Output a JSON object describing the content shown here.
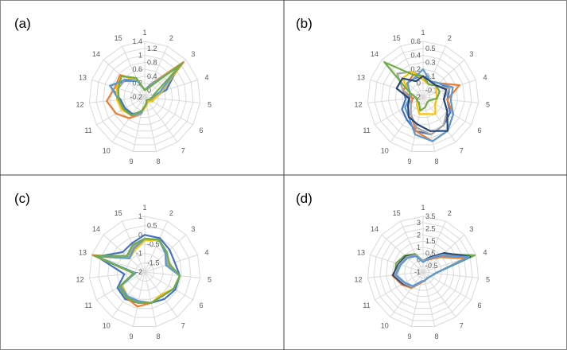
{
  "colors": {
    "blue": "#4472C4",
    "orange": "#ED7D31",
    "gray": "#A5A5A5",
    "yellow": "#FFC000",
    "lightblue": "#5B9BD5",
    "green": "#70AD47",
    "navy": "#264478"
  },
  "chart_data": [
    {
      "type": "radar",
      "panel_label": "(a)",
      "categories": [
        "1",
        "2",
        "3",
        "4",
        "5",
        "6",
        "7",
        "8",
        "9",
        "10",
        "11",
        "12",
        "13",
        "14",
        "15"
      ],
      "ticks": [
        "-0.2",
        "0",
        "0.2",
        "0.4",
        "0.6",
        "0.8",
        "1",
        "1.2",
        "1.4"
      ],
      "range": [
        -0.2,
        1.4
      ],
      "grid": true,
      "series": [
        {
          "color": "blue",
          "values": [
            0.0,
            0.2,
            1.1,
            0.45,
            0.0,
            -0.05,
            -0.1,
            0.0,
            0.25,
            0.4,
            0.45,
            0.5,
            0.85,
            0.5,
            0.3
          ]
        },
        {
          "color": "orange",
          "values": [
            0.0,
            0.2,
            1.3,
            0.3,
            0.05,
            -0.05,
            -0.1,
            0.0,
            0.3,
            0.55,
            0.75,
            0.9,
            0.7,
            0.75,
            0.35
          ]
        },
        {
          "color": "gray",
          "values": [
            0.0,
            0.2,
            1.1,
            0.35,
            0.1,
            0.0,
            -0.1,
            0.0,
            0.3,
            0.45,
            0.5,
            0.55,
            0.6,
            0.55,
            0.35
          ]
        },
        {
          "color": "yellow",
          "values": [
            0.0,
            0.15,
            1.2,
            0.3,
            0.1,
            0.05,
            -0.05,
            0.05,
            0.25,
            0.45,
            0.55,
            0.6,
            0.65,
            0.7,
            0.35
          ]
        },
        {
          "color": "lightblue",
          "values": [
            0.0,
            0.15,
            1.15,
            0.25,
            0.0,
            -0.05,
            -0.1,
            0.0,
            0.25,
            0.45,
            0.5,
            0.55,
            0.85,
            0.55,
            0.3
          ]
        },
        {
          "color": "green",
          "values": [
            0.0,
            0.1,
            1.25,
            0.1,
            0.0,
            -0.05,
            -0.1,
            0.0,
            0.2,
            0.45,
            0.5,
            0.55,
            0.6,
            0.7,
            0.4
          ]
        }
      ]
    },
    {
      "type": "radar",
      "panel_label": "(b)",
      "categories": [
        "1",
        "2",
        "3",
        "4",
        "5",
        "6",
        "7",
        "8",
        "9",
        "10",
        "11",
        "12",
        "13",
        "14",
        "15"
      ],
      "ticks": [
        "-0.2",
        "-0.1",
        "0",
        "0.1",
        "0.2",
        "0.3",
        "0.4",
        "0.5",
        "0.6"
      ],
      "range": [
        -0.2,
        0.6
      ],
      "grid": true,
      "series": [
        {
          "color": "blue",
          "values": [
            0.1,
            0.05,
            0.1,
            0.2,
            0.15,
            0.25,
            0.3,
            0.35,
            0.3,
            0.2,
            0.15,
            0.05,
            0.1,
            0.1,
            0.1
          ]
        },
        {
          "color": "orange",
          "values": [
            0.1,
            0.05,
            0.1,
            0.35,
            0.15,
            0.3,
            0.4,
            0.45,
            0.3,
            0.1,
            0.0,
            -0.05,
            0.1,
            0.1,
            0.15
          ]
        },
        {
          "color": "gray",
          "values": [
            0.1,
            0.05,
            0.05,
            0.2,
            0.1,
            0.2,
            0.3,
            0.35,
            0.25,
            0.1,
            0.0,
            0.0,
            0.1,
            0.3,
            0.2
          ]
        },
        {
          "color": "yellow",
          "values": [
            0.05,
            0.0,
            0.05,
            0.0,
            0.0,
            0.0,
            0.1,
            0.05,
            0.05,
            -0.05,
            -0.1,
            -0.1,
            0.0,
            0.2,
            0.2
          ]
        },
        {
          "color": "lightblue",
          "values": [
            0.2,
            0.05,
            0.1,
            0.25,
            0.2,
            0.3,
            0.4,
            0.45,
            0.35,
            0.15,
            0.1,
            0.0,
            0.0,
            0.1,
            0.1
          ]
        },
        {
          "color": "green",
          "values": [
            0.1,
            0.0,
            0.05,
            0.05,
            0.0,
            -0.1,
            -0.1,
            -0.05,
            0.0,
            -0.1,
            -0.1,
            -0.1,
            0.0,
            0.55,
            0.15
          ]
        },
        {
          "color": "navy",
          "values": [
            0.1,
            0.05,
            0.05,
            0.15,
            0.1,
            0.2,
            0.4,
            0.3,
            0.2,
            0.15,
            0.05,
            0.0,
            0.2,
            0.2,
            0.05
          ]
        }
      ]
    },
    {
      "type": "radar",
      "panel_label": "(c)",
      "categories": [
        "1",
        "2",
        "3",
        "4",
        "5",
        "6",
        "7",
        "8",
        "9",
        "10",
        "11",
        "12",
        "13",
        "14",
        "15"
      ],
      "ticks": [
        "-2",
        "-1.5",
        "-1",
        "-0.5",
        "0",
        "0.5",
        "1"
      ],
      "range": [
        -2,
        1
      ],
      "grid": true,
      "series": [
        {
          "color": "blue",
          "values": [
            0.0,
            0.0,
            -0.2,
            -0.3,
            -0.1,
            -0.1,
            -0.2,
            -0.3,
            -0.3,
            -0.2,
            -0.3,
            -0.9,
            0.7,
            -0.4,
            -0.3
          ]
        },
        {
          "color": "orange",
          "values": [
            -0.2,
            -0.1,
            -0.4,
            -0.6,
            -0.1,
            -0.2,
            -0.4,
            -0.3,
            -0.1,
            -0.3,
            -0.5,
            -1.4,
            0.95,
            -0.8,
            -0.4
          ]
        },
        {
          "color": "gray",
          "values": [
            -0.2,
            -0.1,
            -0.5,
            -0.7,
            -0.1,
            -0.2,
            -0.4,
            -0.3,
            -0.3,
            -0.4,
            -0.5,
            -1.5,
            0.8,
            -0.8,
            -0.5
          ]
        },
        {
          "color": "yellow",
          "values": [
            -0.3,
            -0.1,
            -0.5,
            -0.8,
            -0.1,
            -0.2,
            -0.5,
            -0.3,
            -0.4,
            -0.4,
            -0.6,
            -1.5,
            0.7,
            -0.9,
            -0.7
          ]
        },
        {
          "color": "lightblue",
          "values": [
            -0.2,
            -0.1,
            -0.5,
            -0.8,
            -0.1,
            -0.2,
            -0.4,
            -0.3,
            -0.4,
            -0.4,
            -0.5,
            -1.5,
            0.75,
            -0.9,
            -0.6
          ]
        },
        {
          "color": "green",
          "values": [
            -0.2,
            -0.1,
            -0.4,
            -0.6,
            -0.1,
            -0.2,
            -0.4,
            -0.3,
            -0.3,
            -0.3,
            -0.4,
            -1.4,
            0.85,
            -0.7,
            -0.4
          ]
        }
      ]
    },
    {
      "type": "radar",
      "panel_label": "(d)",
      "categories": [
        "1",
        "2",
        "3",
        "4",
        "5",
        "6",
        "7",
        "8",
        "9",
        "10",
        "11",
        "12",
        "13",
        "14",
        "15"
      ],
      "ticks": [
        "-1",
        "-0.5",
        "0",
        "0.5",
        "1",
        "1.5",
        "2",
        "2.5",
        "3",
        "3.5"
      ],
      "range": [
        -1,
        3.5
      ],
      "grid": true,
      "series": [
        {
          "color": "green",
          "values": [
            -0.1,
            0.3,
            1.2,
            3.4,
            0.0,
            -0.3,
            -0.4,
            -0.3,
            -0.2,
            0.5,
            0.8,
            1.3,
            1.3,
            1.0,
            0.6
          ]
        },
        {
          "color": "orange",
          "values": [
            -0.1,
            0.1,
            0.8,
            2.6,
            0.0,
            -0.3,
            -0.4,
            -0.3,
            -0.1,
            0.6,
            1.0,
            1.5,
            1.0,
            0.9,
            0.5
          ]
        },
        {
          "color": "navy",
          "values": [
            -0.1,
            0.3,
            1.3,
            3.0,
            0.0,
            -0.3,
            -0.4,
            -0.3,
            -0.2,
            0.5,
            0.9,
            1.45,
            1.1,
            0.9,
            0.5
          ]
        },
        {
          "color": "gray",
          "values": [
            -0.1,
            0.2,
            1.1,
            2.8,
            0.0,
            -0.3,
            -0.4,
            -0.3,
            -0.2,
            0.5,
            0.8,
            1.3,
            1.0,
            0.8,
            0.5
          ]
        },
        {
          "color": "lightblue",
          "values": [
            -0.2,
            0.2,
            1.0,
            2.9,
            0.0,
            -0.3,
            -0.4,
            -0.3,
            -0.2,
            0.4,
            0.7,
            1.2,
            0.9,
            0.7,
            0.4
          ]
        }
      ]
    }
  ]
}
